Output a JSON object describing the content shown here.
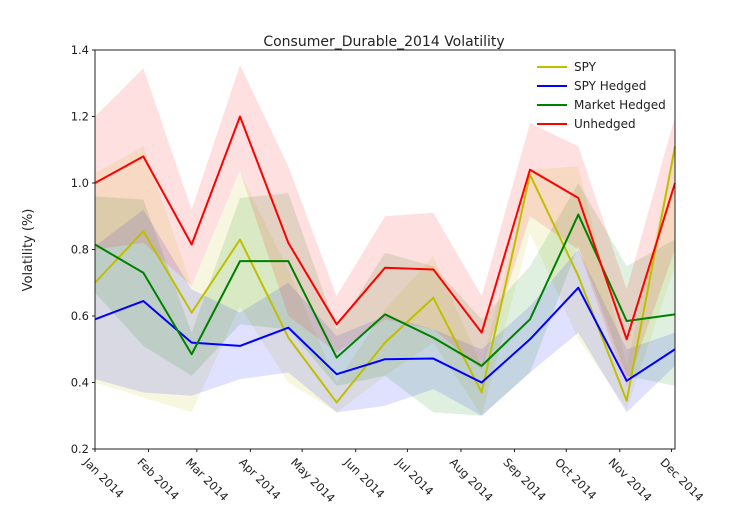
{
  "chart_data": {
    "type": "line",
    "title": "Consumer_Durable_2014 Volatility",
    "y_label": "Volatility (%)",
    "x": [
      0,
      28,
      56,
      84,
      112,
      140,
      168,
      196,
      224,
      252,
      280,
      308,
      336
    ],
    "xlim": [
      0,
      336
    ],
    "xticks": [
      {
        "value": 0,
        "label": "Jan 2014"
      },
      {
        "value": 31,
        "label": "Feb 2014"
      },
      {
        "value": 59,
        "label": "Mar 2014"
      },
      {
        "value": 90,
        "label": "Apr 2014"
      },
      {
        "value": 120,
        "label": "May 2014"
      },
      {
        "value": 151,
        "label": "Jun 2014"
      },
      {
        "value": 181,
        "label": "Jul 2014"
      },
      {
        "value": 212,
        "label": "Aug 2014"
      },
      {
        "value": 243,
        "label": "Sep 2014"
      },
      {
        "value": 273,
        "label": "Oct 2014"
      },
      {
        "value": 304,
        "label": "Nov 2014"
      },
      {
        "value": 334,
        "label": "Dec 2014"
      }
    ],
    "ylim": [
      0.2,
      1.4
    ],
    "yticks": [
      0.2,
      0.4,
      0.6,
      0.8,
      {
        "value": 1,
        "label": "1.0"
      },
      1.2,
      1.4
    ],
    "legend": "upper right",
    "series": [
      {
        "name": "SPY",
        "color": "#bfbf00",
        "values": [
          0.7,
          0.855,
          0.61,
          0.83,
          0.535,
          0.34,
          0.52,
          0.655,
          0.37,
          1.025,
          0.72,
          0.345,
          1.11
        ],
        "upper": [
          1.03,
          1.11,
          0.69,
          1.03,
          0.74,
          0.4,
          0.62,
          0.78,
          0.45,
          1.04,
          1.05,
          0.45,
          1.11
        ],
        "lower": [
          0.4,
          0.355,
          0.31,
          0.63,
          0.4,
          0.31,
          0.42,
          0.52,
          0.3,
          0.85,
          0.53,
          0.32,
          0.75
        ]
      },
      {
        "name": "SPY Hedged",
        "color": "#0000ff",
        "values": [
          0.59,
          0.645,
          0.52,
          0.51,
          0.565,
          0.425,
          0.47,
          0.472,
          0.4,
          0.53,
          0.685,
          0.405,
          0.5
        ],
        "upper": [
          0.81,
          0.92,
          0.68,
          0.61,
          0.7,
          0.54,
          0.6,
          0.56,
          0.5,
          0.63,
          0.8,
          0.5,
          0.55
        ],
        "lower": [
          0.41,
          0.37,
          0.36,
          0.41,
          0.43,
          0.31,
          0.33,
          0.38,
          0.3,
          0.43,
          0.55,
          0.31,
          0.45
        ]
      },
      {
        "name": "Market Hedged",
        "color": "#008000",
        "values": [
          0.815,
          0.73,
          0.485,
          0.765,
          0.765,
          0.475,
          0.605,
          0.535,
          0.45,
          0.59,
          0.905,
          0.585,
          0.605
        ],
        "upper": [
          0.96,
          0.95,
          0.55,
          0.955,
          0.97,
          0.56,
          0.79,
          0.75,
          0.59,
          0.75,
          1.0,
          0.75,
          0.83
        ],
        "lower": [
          0.67,
          0.51,
          0.42,
          0.575,
          0.56,
          0.39,
          0.42,
          0.31,
          0.3,
          0.43,
          0.81,
          0.42,
          0.39
        ]
      },
      {
        "name": "Unhedged",
        "color": "#ff0000",
        "values": [
          1.0,
          1.08,
          0.815,
          1.2,
          0.82,
          0.575,
          0.745,
          0.74,
          0.55,
          1.04,
          0.955,
          0.53,
          1.0
        ],
        "upper": [
          1.2,
          1.345,
          0.92,
          1.355,
          1.05,
          0.66,
          0.9,
          0.91,
          0.66,
          1.18,
          1.11,
          0.68,
          1.2
        ],
        "lower": [
          0.8,
          0.82,
          0.69,
          1.035,
          0.6,
          0.49,
          0.59,
          0.56,
          0.44,
          0.9,
          0.8,
          0.39,
          0.8
        ]
      }
    ]
  }
}
